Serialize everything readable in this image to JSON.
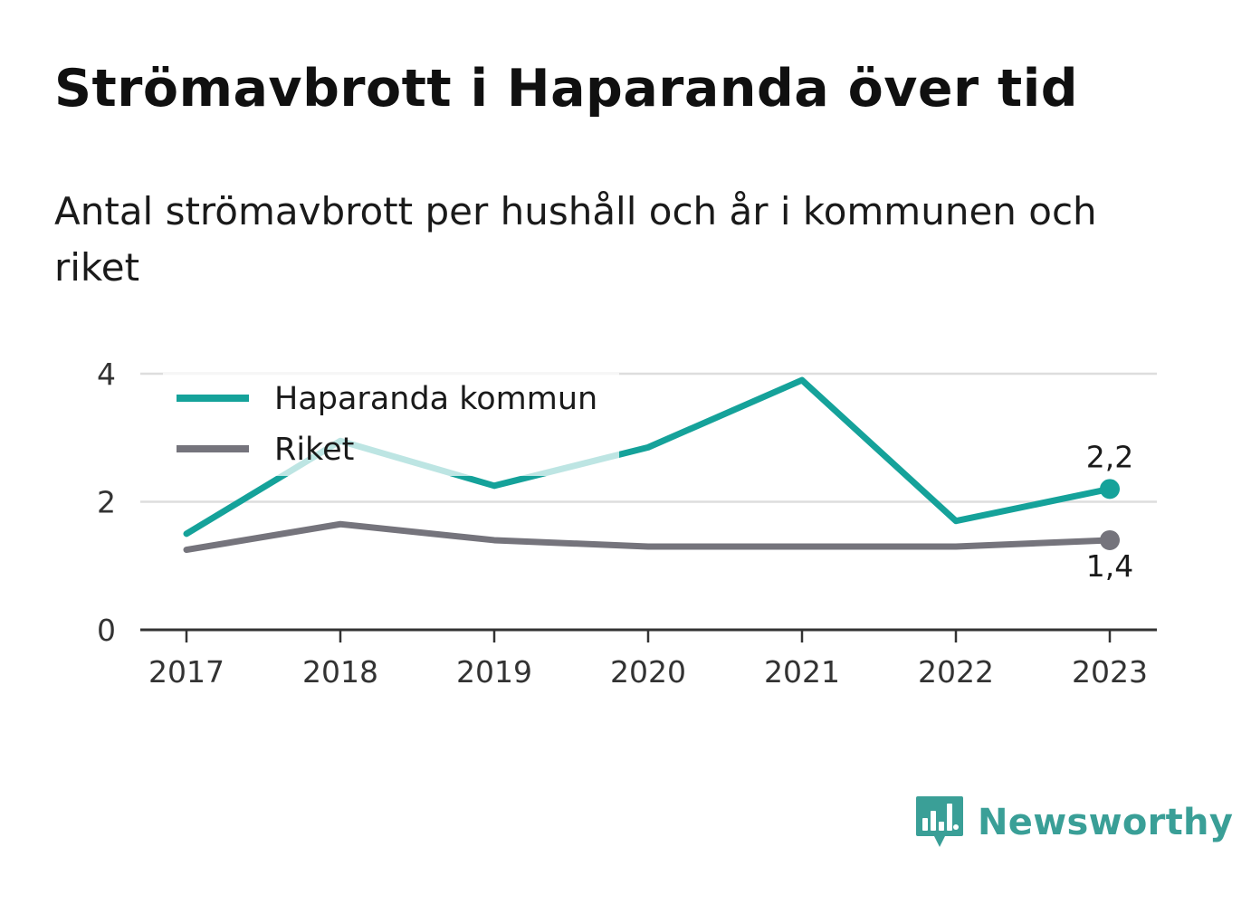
{
  "title": "Strömavbrott i Haparanda över tid",
  "subtitle": "Antal strömavbrott per hushåll och år i kommunen och riket",
  "brand": {
    "name": "Newsworthy",
    "logo_icon": "bar-chart-speech-bubble-icon",
    "color": "#3a9f97"
  },
  "chart_data": {
    "type": "line",
    "x": [
      2017,
      2018,
      2019,
      2020,
      2021,
      2022,
      2023
    ],
    "x_tick_labels": [
      "2017",
      "2018",
      "2019",
      "2020",
      "2021",
      "2022",
      "2023"
    ],
    "y_ticks": [
      0,
      2,
      4
    ],
    "y_tick_labels": [
      "0",
      "2",
      "4"
    ],
    "ylim": [
      0,
      4
    ],
    "grid": true,
    "legend_position": "top-left",
    "series": [
      {
        "name": "Haparanda kommun",
        "color": "#15a29a",
        "values": [
          1.5,
          2.95,
          2.25,
          2.85,
          3.9,
          1.7,
          2.2
        ],
        "end_label": "2,2"
      },
      {
        "name": "Riket",
        "color": "#75747c",
        "values": [
          1.25,
          1.65,
          1.4,
          1.3,
          1.3,
          1.3,
          1.4
        ],
        "end_label": "1,4"
      }
    ]
  }
}
